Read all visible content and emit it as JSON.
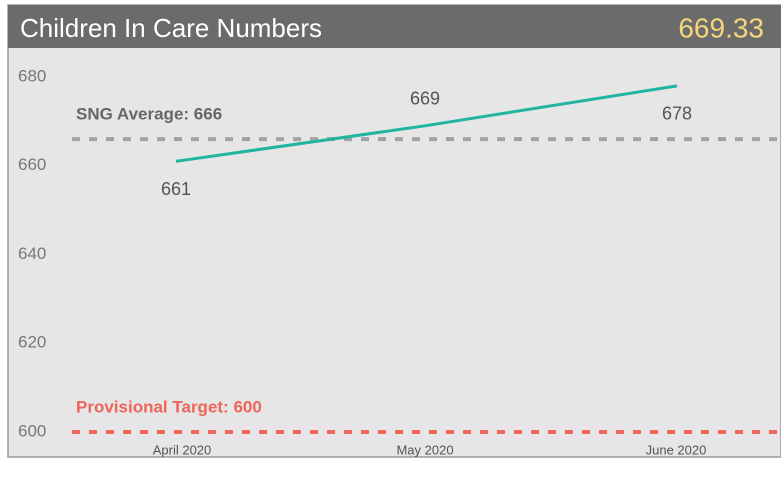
{
  "chart_data": {
    "type": "line",
    "title": "Children In Care Numbers",
    "kpi": 669.33,
    "categories": [
      "April 2020",
      "May 2020",
      "June 2020"
    ],
    "series": [
      {
        "name": null,
        "color": "#1fb5a0",
        "values": [
          661,
          669,
          678
        ]
      }
    ],
    "ylim": [
      600,
      680
    ],
    "yticks": [
      600,
      620,
      640,
      660,
      680
    ],
    "grid": false,
    "reference_lines": [
      {
        "label": "SNG Average: 666",
        "value": 666,
        "color": "#a3a3a3"
      },
      {
        "label": "Provisional Target: 600",
        "value": 600,
        "color": "#f0645a"
      }
    ]
  }
}
